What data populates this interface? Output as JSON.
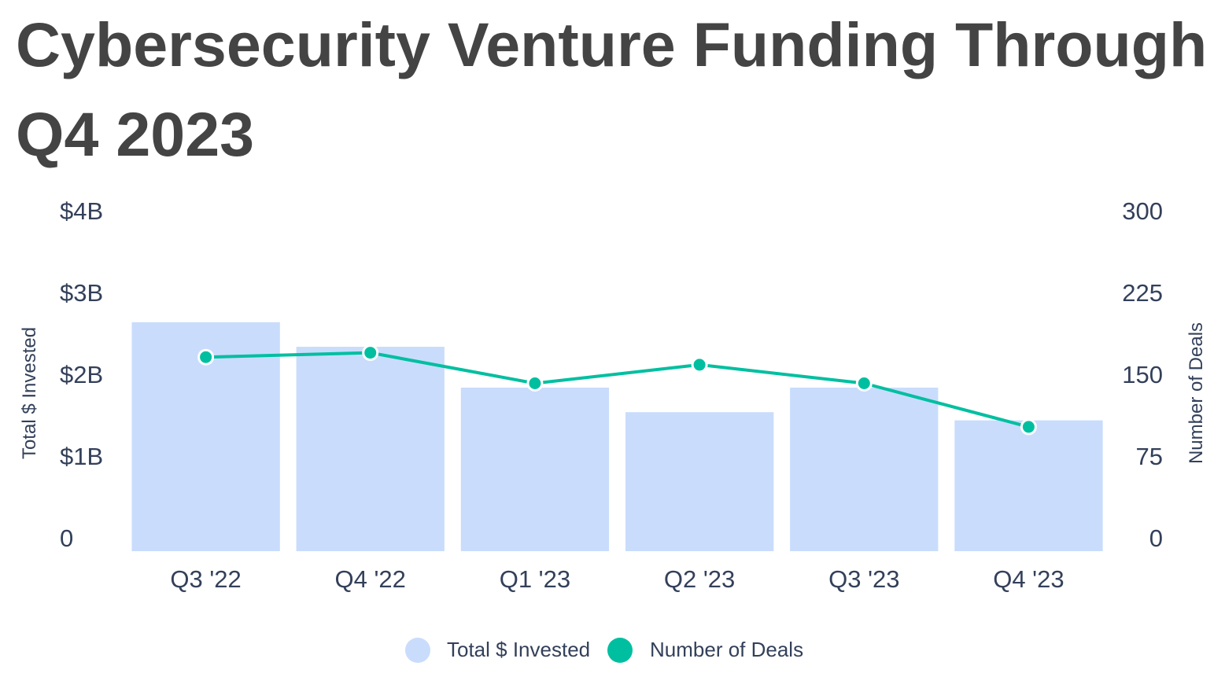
{
  "chart_data": {
    "type": "bar",
    "title": "Cybersecurity Venture Funding Through Q4 2023",
    "categories": [
      "Q3 '22",
      "Q4 '22",
      "Q1 '23",
      "Q2 '23",
      "Q3 '23",
      "Q4 '23"
    ],
    "series": [
      {
        "name": "Total $ Invested",
        "type": "bar",
        "axis": "left",
        "color": "#c9dcfc",
        "values": [
          2.8,
          2.5,
          2.0,
          1.7,
          2.0,
          1.6
        ]
      },
      {
        "name": "Number of Deals",
        "type": "line",
        "axis": "right",
        "color": "#00bfa0",
        "values": [
          178,
          182,
          154,
          171,
          154,
          114
        ]
      }
    ],
    "y_left": {
      "label": "Total $ Invested",
      "ylim": [
        0,
        4
      ],
      "ticks": [
        0,
        1,
        2,
        3,
        4
      ],
      "tick_labels": [
        "0",
        "$1B",
        "$2B",
        "$3B",
        "$4B"
      ]
    },
    "y_right": {
      "label": "Number of Deals",
      "ylim": [
        0,
        300
      ],
      "ticks": [
        0,
        75,
        150,
        225,
        300
      ],
      "tick_labels": [
        "0",
        "75",
        "150",
        "225",
        "300"
      ]
    },
    "legend": {
      "position": "bottom-center",
      "items": [
        "Total $ Invested",
        "Number of Deals"
      ]
    }
  }
}
